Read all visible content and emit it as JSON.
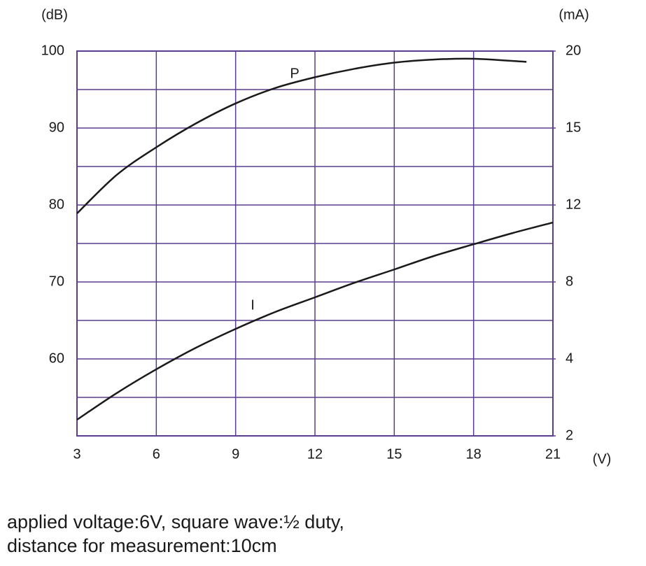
{
  "chart_data": {
    "type": "line",
    "x_label": "(V)",
    "y_label": "(dB)",
    "y2_label": "(mA)",
    "xlim": [
      3,
      21
    ],
    "xticks": [
      3,
      6,
      9,
      12,
      15,
      18,
      21
    ],
    "ylim": [
      50,
      100
    ],
    "yticks": [
      60,
      70,
      80,
      90,
      100
    ],
    "y2lim": [
      2,
      20
    ],
    "y2ticks": [
      2,
      4,
      8,
      12,
      15,
      20
    ],
    "grid": true,
    "grid_color": "#5b3d8f",
    "series": [
      {
        "name": "P",
        "color": "#1a1a1a",
        "x": [
          3,
          4.5,
          6,
          7.5,
          9,
          10.5,
          12,
          13.5,
          15,
          16.5,
          18,
          20
        ],
        "values": [
          78.9,
          83.9,
          87.5,
          90.6,
          93.2,
          95.2,
          96.6,
          97.7,
          98.5,
          98.9,
          99.0,
          98.6
        ]
      },
      {
        "name": "I",
        "color": "#1a1a1a",
        "axis": "y2",
        "x": [
          3,
          4.5,
          6,
          7.5,
          9,
          10.5,
          12,
          13.5,
          15,
          16.5,
          18,
          19.5,
          21
        ],
        "values": [
          2.42,
          3.11,
          3.73,
          4.58,
          5.56,
          6.44,
          7.2,
          7.96,
          8.65,
          9.35,
          9.96,
          10.55,
          11.09
        ]
      }
    ],
    "notes": [
      "applied voltage:6V, square wave:½ duty,",
      "distance for measurement:10cm"
    ]
  }
}
